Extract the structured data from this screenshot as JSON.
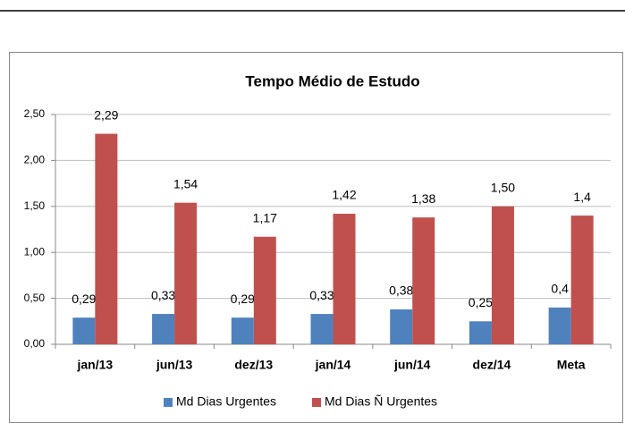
{
  "chart_data": {
    "type": "bar",
    "title": "Tempo Médio de Estudo",
    "categories": [
      "jan/13",
      "jun/13",
      "dez/13",
      "jan/14",
      "jun/14",
      "dez/14",
      "Meta"
    ],
    "series": [
      {
        "name": "Md Dias Urgentes",
        "color": "#4f81bd",
        "values": [
          0.29,
          0.33,
          0.29,
          0.33,
          0.38,
          0.25,
          0.4
        ],
        "value_labels": [
          "0,29",
          "0,33",
          "0,29",
          "0,33",
          "0,38",
          "0,25",
          "0,4"
        ]
      },
      {
        "name": "Md Dias Ñ Urgentes",
        "color": "#c0504d",
        "values": [
          2.29,
          1.54,
          1.17,
          1.42,
          1.38,
          1.5,
          1.4
        ],
        "value_labels": [
          "2,29",
          "1,54",
          "1,17",
          "1,42",
          "1,38",
          "1,50",
          "1,4"
        ]
      }
    ],
    "ylim": [
      0,
      2.5
    ],
    "yticks": [
      {
        "value": 0,
        "label": "0,00"
      },
      {
        "value": 0.5,
        "label": "0,50"
      },
      {
        "value": 1,
        "label": "1,00"
      },
      {
        "value": 1.5,
        "label": "1,50"
      },
      {
        "value": 2,
        "label": "2,00"
      },
      {
        "value": 2.5,
        "label": "2,50"
      }
    ],
    "grid": true,
    "legend": "bottom"
  }
}
